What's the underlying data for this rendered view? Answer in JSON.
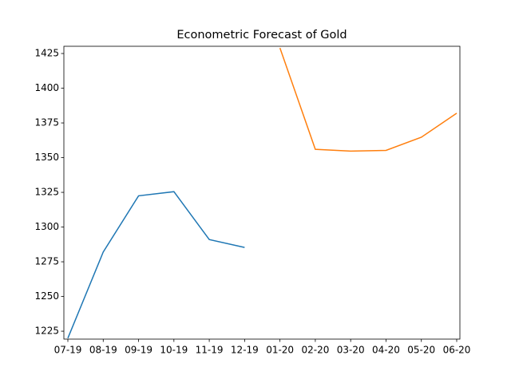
{
  "chart_data": {
    "type": "line",
    "title": "Econometric Forecast of Gold",
    "categories": [
      "07-19",
      "08-19",
      "09-19",
      "10-19",
      "11-19",
      "12-19",
      "01-20",
      "02-20",
      "03-20",
      "04-20",
      "05-20",
      "06-20"
    ],
    "series": [
      {
        "color": "#1f77b4",
        "values": [
          1220,
          1282,
          1322.5,
          1325.5,
          1291,
          1285.3,
          null,
          null,
          null,
          null,
          null,
          null
        ]
      },
      {
        "color": "#ff7f0e",
        "values": [
          null,
          null,
          null,
          null,
          null,
          null,
          1429,
          1356,
          1354.7,
          1355.2,
          1364.7,
          1382
        ]
      }
    ],
    "ylim": [
      1219.3,
      1430.2
    ],
    "yticks": [
      1225,
      1250,
      1275,
      1300,
      1325,
      1350,
      1375,
      1400,
      1425
    ],
    "grid": false
  }
}
